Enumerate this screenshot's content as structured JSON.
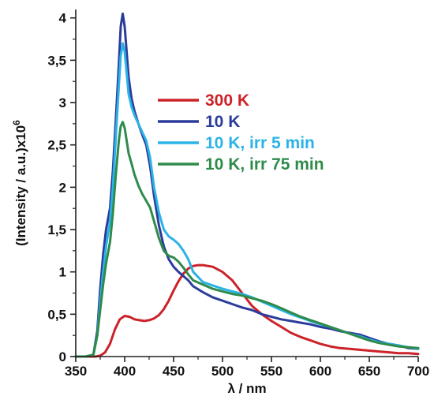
{
  "chart_data": {
    "type": "line",
    "xlabel": "λ / nm",
    "ylabel": {
      "text": "(Intensity / a.u.)x10",
      "superscript": "6"
    },
    "xlim": [
      350,
      700
    ],
    "ylim": [
      0,
      4.1
    ],
    "x_ticks": [
      350,
      400,
      450,
      500,
      550,
      600,
      650,
      700
    ],
    "x_tick_labels": [
      "350",
      "400",
      "450",
      "500",
      "550",
      "600",
      "650",
      "700"
    ],
    "y_ticks": [
      0,
      0.5,
      1,
      1.5,
      2,
      2.5,
      3,
      3.5,
      4
    ],
    "y_tick_labels": [
      "0",
      "0,5",
      "1",
      "1,5",
      "2",
      "2,5",
      "3",
      "3,5",
      "4"
    ],
    "grid": false,
    "legend_position": "center-right",
    "series": [
      {
        "name": "300 K",
        "color": "#cc2229",
        "x": [
          350,
          360,
          370,
          375,
          380,
          385,
          390,
          395,
          400,
          405,
          410,
          415,
          420,
          425,
          430,
          435,
          440,
          445,
          450,
          455,
          460,
          465,
          470,
          475,
          480,
          490,
          500,
          510,
          520,
          530,
          540,
          550,
          560,
          570,
          580,
          590,
          600,
          610,
          620,
          630,
          640,
          650,
          660,
          670,
          680,
          690,
          700
        ],
        "y": [
          0,
          0,
          0,
          0.01,
          0.05,
          0.15,
          0.32,
          0.44,
          0.48,
          0.47,
          0.44,
          0.43,
          0.42,
          0.43,
          0.45,
          0.49,
          0.56,
          0.66,
          0.78,
          0.89,
          0.98,
          1.04,
          1.07,
          1.08,
          1.08,
          1.06,
          1.0,
          0.9,
          0.75,
          0.6,
          0.5,
          0.42,
          0.35,
          0.28,
          0.23,
          0.19,
          0.15,
          0.12,
          0.1,
          0.09,
          0.08,
          0.07,
          0.06,
          0.05,
          0.04,
          0.04,
          0.03
        ]
      },
      {
        "name": "10 K",
        "color": "#2b3c9b",
        "x": [
          350,
          360,
          368,
          372,
          375,
          378,
          381,
          385,
          388,
          391,
          394,
          396,
          398,
          400,
          402,
          404,
          407,
          410,
          414,
          418,
          422,
          426,
          430,
          435,
          440,
          445,
          450,
          455,
          460,
          465,
          470,
          480,
          490,
          500,
          510,
          520,
          530,
          540,
          550,
          560,
          570,
          580,
          590,
          600,
          610,
          620,
          630,
          640,
          650,
          660,
          670,
          680,
          690,
          700
        ],
        "y": [
          0,
          0,
          0.02,
          0.3,
          0.8,
          1.2,
          1.5,
          1.75,
          2.2,
          2.8,
          3.45,
          3.9,
          4.05,
          3.9,
          3.6,
          3.3,
          3.05,
          2.9,
          2.75,
          2.62,
          2.5,
          2.25,
          1.9,
          1.55,
          1.3,
          1.15,
          1.06,
          1.0,
          0.95,
          0.9,
          0.83,
          0.76,
          0.7,
          0.66,
          0.62,
          0.58,
          0.55,
          0.5,
          0.47,
          0.44,
          0.42,
          0.4,
          0.38,
          0.35,
          0.33,
          0.3,
          0.28,
          0.26,
          0.22,
          0.18,
          0.15,
          0.13,
          0.1,
          0.09
        ]
      },
      {
        "name": "10 K, irr 5 min",
        "color": "#2bb3e6",
        "x": [
          350,
          360,
          368,
          372,
          375,
          378,
          381,
          385,
          388,
          391,
          394,
          396,
          398,
          400,
          402,
          404,
          407,
          410,
          414,
          418,
          422,
          426,
          430,
          435,
          440,
          445,
          450,
          455,
          460,
          465,
          470,
          480,
          490,
          500,
          510,
          520,
          530,
          540,
          550,
          560,
          570,
          580,
          590,
          600,
          610,
          620,
          630,
          640,
          650,
          660,
          670,
          680,
          690,
          700
        ],
        "y": [
          0,
          0,
          0.02,
          0.25,
          0.65,
          1.0,
          1.3,
          1.6,
          2.0,
          2.6,
          3.2,
          3.55,
          3.7,
          3.6,
          3.35,
          3.1,
          2.95,
          2.85,
          2.75,
          2.65,
          2.55,
          2.35,
          2.0,
          1.7,
          1.5,
          1.42,
          1.38,
          1.33,
          1.25,
          1.15,
          1.0,
          0.88,
          0.84,
          0.8,
          0.77,
          0.74,
          0.7,
          0.65,
          0.6,
          0.55,
          0.5,
          0.46,
          0.42,
          0.38,
          0.35,
          0.31,
          0.27,
          0.24,
          0.2,
          0.17,
          0.15,
          0.13,
          0.11,
          0.09
        ]
      },
      {
        "name": "10 K, irr 75 min",
        "color": "#2e8b4a",
        "x": [
          350,
          360,
          368,
          372,
          375,
          378,
          381,
          385,
          388,
          391,
          394,
          396,
          398,
          400,
          402,
          404,
          407,
          410,
          414,
          418,
          422,
          426,
          430,
          435,
          440,
          445,
          450,
          455,
          460,
          465,
          470,
          480,
          490,
          500,
          510,
          520,
          530,
          540,
          550,
          560,
          570,
          580,
          590,
          600,
          610,
          620,
          630,
          640,
          650,
          660,
          670,
          680,
          690,
          700
        ],
        "y": [
          0,
          0,
          0.02,
          0.25,
          0.55,
          0.85,
          1.1,
          1.35,
          1.7,
          2.15,
          2.55,
          2.72,
          2.77,
          2.7,
          2.55,
          2.4,
          2.28,
          2.15,
          2.02,
          1.92,
          1.84,
          1.76,
          1.6,
          1.4,
          1.25,
          1.19,
          1.17,
          1.12,
          1.05,
          0.97,
          0.9,
          0.85,
          0.8,
          0.77,
          0.74,
          0.72,
          0.69,
          0.66,
          0.62,
          0.57,
          0.52,
          0.47,
          0.43,
          0.39,
          0.35,
          0.31,
          0.27,
          0.23,
          0.19,
          0.16,
          0.14,
          0.12,
          0.11,
          0.1
        ]
      }
    ]
  }
}
